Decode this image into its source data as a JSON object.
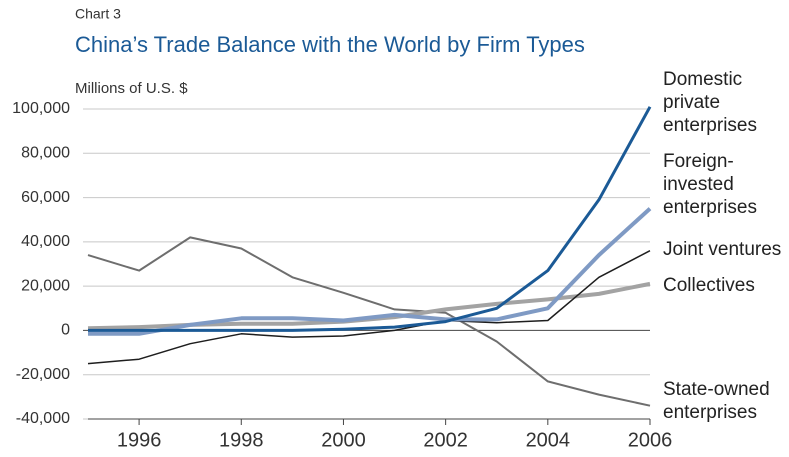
{
  "chart_data": {
    "type": "line",
    "subtitle": "Chart 3",
    "title": "China’s Trade Balance with the World by Firm Types",
    "y_label": "Millions of U.S. $",
    "x": [
      1995,
      1996,
      1997,
      1998,
      1999,
      2000,
      2001,
      2002,
      2003,
      2004,
      2005,
      2006
    ],
    "xlim": [
      1995,
      2006
    ],
    "xticks": [
      1996,
      1998,
      2000,
      2002,
      2004,
      2006
    ],
    "ylim": [
      -40000,
      100000
    ],
    "yticks": [
      {
        "value": -40000,
        "label": "-40,000"
      },
      {
        "value": -20000,
        "label": "-20,000"
      },
      0,
      {
        "value": 20000,
        "label": "20,000"
      },
      {
        "value": 40000,
        "label": "40,000"
      },
      {
        "value": 60000,
        "label": "60,000"
      },
      {
        "value": 80000,
        "label": "80,000"
      },
      {
        "value": 100000,
        "label": "100,000"
      }
    ],
    "grid": true,
    "series": [
      {
        "name": "Domestic private enterprises",
        "color": "#1b5a96",
        "values": [
          0,
          0,
          0,
          0,
          0,
          500,
          1500,
          4000,
          10000,
          27000,
          59000,
          101000
        ]
      },
      {
        "name": "Foreign-invested enterprises",
        "color": "#7f9ac4",
        "values": [
          -1500,
          -1500,
          2500,
          5500,
          5500,
          4500,
          7000,
          5000,
          5000,
          10000,
          34000,
          55000
        ]
      },
      {
        "name": "Joint ventures",
        "color": "#1e1e1e",
        "values": [
          -15000,
          -13000,
          -6000,
          -1500,
          -3000,
          -2500,
          0,
          4500,
          3500,
          4500,
          24000,
          36000
        ]
      },
      {
        "name": "Collectives",
        "color": "#a3a3a3",
        "values": [
          1000,
          1500,
          2500,
          3000,
          3000,
          4000,
          6000,
          9500,
          12000,
          14000,
          16500,
          21000
        ]
      },
      {
        "name": "State-owned enterprises",
        "color": "#6e6e6e",
        "values": [
          34000,
          27000,
          42000,
          37000,
          24000,
          17000,
          9500,
          8000,
          -5000,
          -23000,
          -29000,
          -34000
        ]
      }
    ]
  }
}
